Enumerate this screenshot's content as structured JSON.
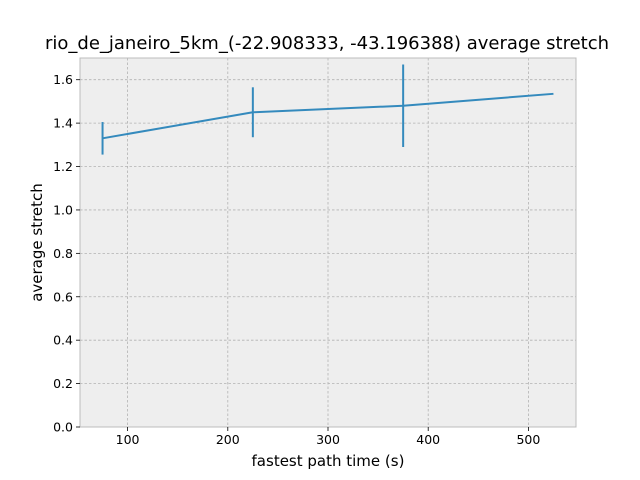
{
  "chart_data": {
    "type": "line",
    "title": "rio_de_janeiro_5km_(-22.908333, -43.196388) average stretch",
    "xlabel": "fastest path time (s)",
    "ylabel": "average stretch",
    "xlim": [
      52.5,
      547.5
    ],
    "ylim": [
      0,
      1.7
    ],
    "xticks": [
      100,
      200,
      300,
      400,
      500
    ],
    "xtick_labels": [
      "100",
      "200",
      "300",
      "400",
      "500"
    ],
    "yticks": [
      0.0,
      0.2,
      0.4,
      0.6,
      0.8,
      1.0,
      1.2,
      1.4,
      1.6
    ],
    "ytick_labels": [
      "0.0",
      "0.2",
      "0.4",
      "0.6",
      "0.8",
      "1.0",
      "1.2",
      "1.4",
      "1.6"
    ],
    "grid": true,
    "series": [
      {
        "x": [
          75,
          225,
          375,
          525
        ],
        "y": [
          1.33,
          1.45,
          1.48,
          1.535
        ],
        "yerr": [
          0.075,
          0.115,
          0.19,
          0
        ],
        "color": "#348abd"
      }
    ],
    "colors": {
      "plot_background": "#eeeeee",
      "grid": "#b2b2b2",
      "frame": "#bcbcbc"
    }
  }
}
